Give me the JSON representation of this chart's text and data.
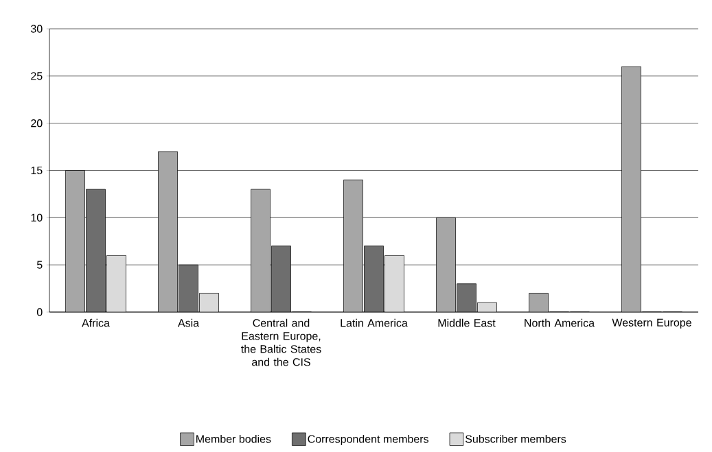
{
  "chart_data": {
    "type": "bar",
    "categories": [
      "Africa",
      "Asia",
      "Central and Eastern Europe, the Baltic States and the CIS",
      "Latin America",
      "Middle East",
      "North America",
      "Western Europe"
    ],
    "series": [
      {
        "name": "Member bodies",
        "color": "#a6a6a6",
        "values": [
          15,
          17,
          13,
          14,
          10,
          2,
          26
        ]
      },
      {
        "name": "Correspondent members",
        "color": "#6e6e6e",
        "values": [
          13,
          5,
          7,
          7,
          3,
          0,
          0
        ]
      },
      {
        "name": "Subscriber members",
        "color": "#dadada",
        "values": [
          6,
          2,
          0,
          6,
          1,
          0,
          0
        ]
      }
    ],
    "ylim": [
      0,
      30
    ],
    "yticks": [
      0,
      5,
      10,
      15,
      20,
      25,
      30
    ],
    "grid": "y",
    "legend": "bottom"
  }
}
